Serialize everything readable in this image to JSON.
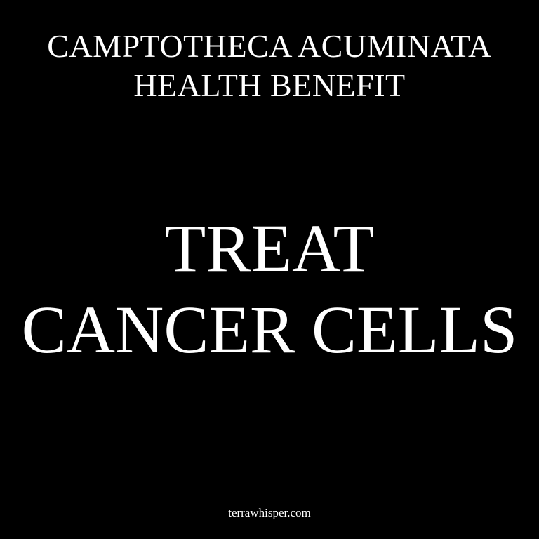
{
  "colors": {
    "background": "#000000",
    "text": "#ffffff"
  },
  "heading": {
    "line1": "CAMPTOTHECA ACUMINATA",
    "line2": "HEALTH BENEFIT"
  },
  "main": {
    "line1": "TREAT",
    "line2": "CANCER CELLS"
  },
  "footer": {
    "site": "terrawhisper.com"
  }
}
